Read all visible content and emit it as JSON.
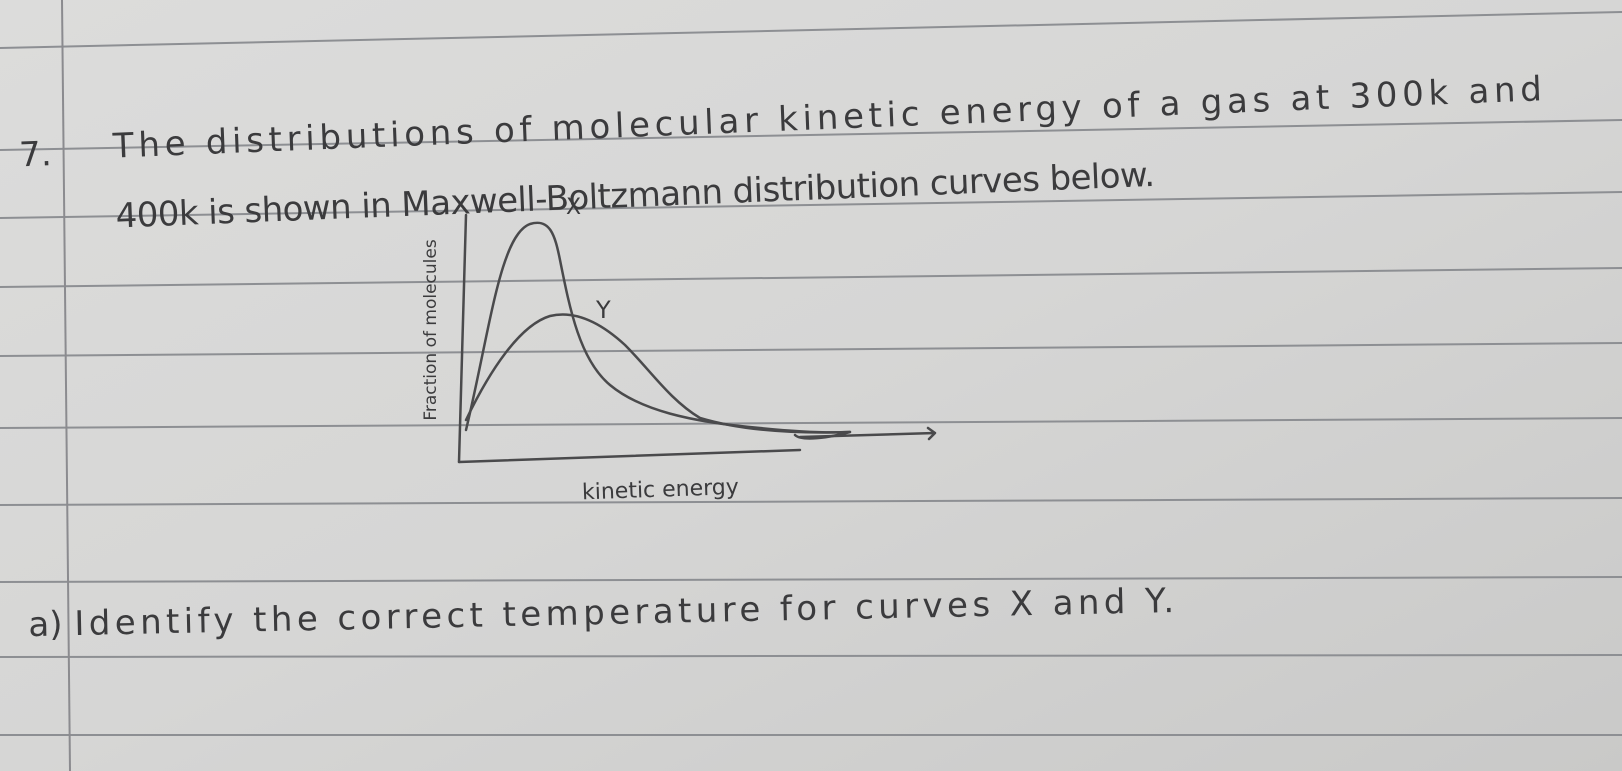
{
  "question": {
    "number": "7.",
    "text_lines": [
      "The distributions of molecular kinetic energy of a gas at 300k and",
      "400k is shown in Maxwell-Boltzmann distribution curves below."
    ]
  },
  "sketch": {
    "y_axis_label": "Fraction of molecules",
    "x_axis_label": "kinetic energy",
    "curve_labels": [
      "X",
      "Y"
    ]
  },
  "part_a": {
    "label": "a)",
    "text": "Identify the correct temperature for curves X and Y."
  }
}
